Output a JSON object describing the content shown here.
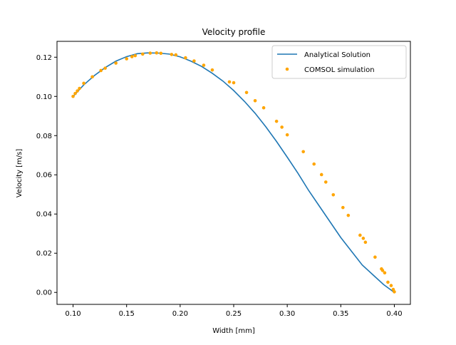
{
  "chart_data": {
    "type": "line",
    "title": "Velocity profile",
    "xlabel": "Width [mm]",
    "ylabel": "Velocity [m/s]",
    "xlim": [
      0.085,
      0.415
    ],
    "ylim": [
      -0.0061,
      0.1281
    ],
    "xticks": [
      0.1,
      0.15,
      0.2,
      0.25,
      0.3,
      0.35,
      0.4
    ],
    "xtick_labels": [
      "0.10",
      "0.15",
      "0.20",
      "0.25",
      "0.30",
      "0.35",
      "0.40"
    ],
    "yticks": [
      0.0,
      0.02,
      0.04,
      0.06,
      0.08,
      0.1,
      0.12
    ],
    "ytick_labels": [
      "0.00",
      "0.02",
      "0.04",
      "0.06",
      "0.08",
      "0.10",
      "0.12"
    ],
    "grid": false,
    "legend_position": "top-right",
    "series": [
      {
        "name": "Analytical Solution",
        "kind": "line",
        "color": "#1f77b4",
        "x": [
          0.1,
          0.11,
          0.12,
          0.13,
          0.14,
          0.15,
          0.16,
          0.17,
          0.18,
          0.19,
          0.2,
          0.21,
          0.22,
          0.23,
          0.24,
          0.25,
          0.26,
          0.27,
          0.28,
          0.29,
          0.3,
          0.31,
          0.32,
          0.33,
          0.34,
          0.35,
          0.36,
          0.37,
          0.38,
          0.39,
          0.4
        ],
        "y": [
          0.1,
          0.1059,
          0.1107,
          0.1147,
          0.118,
          0.1203,
          0.1218,
          0.1222,
          0.1221,
          0.1216,
          0.1202,
          0.118,
          0.1153,
          0.1118,
          0.1078,
          0.103,
          0.0975,
          0.0914,
          0.0845,
          0.077,
          0.069,
          0.0608,
          0.052,
          0.044,
          0.036,
          0.028,
          0.021,
          0.014,
          0.009,
          0.004,
          0.0
        ]
      },
      {
        "name": "COMSOL simulation",
        "kind": "scatter",
        "color": "#ffa500",
        "x": [
          0.1,
          0.102,
          0.104,
          0.106,
          0.11,
          0.118,
          0.126,
          0.13,
          0.14,
          0.15,
          0.155,
          0.158,
          0.165,
          0.172,
          0.178,
          0.182,
          0.192,
          0.196,
          0.205,
          0.213,
          0.222,
          0.23,
          0.246,
          0.25,
          0.262,
          0.27,
          0.278,
          0.29,
          0.295,
          0.3,
          0.315,
          0.325,
          0.332,
          0.336,
          0.343,
          0.352,
          0.357,
          0.368,
          0.371,
          0.373,
          0.382,
          0.388,
          0.389,
          0.391,
          0.394,
          0.397,
          0.399,
          0.4
        ],
        "y": [
          0.1,
          0.1015,
          0.1028,
          0.1041,
          0.1067,
          0.11,
          0.1132,
          0.1144,
          0.117,
          0.1192,
          0.1203,
          0.1208,
          0.1216,
          0.1221,
          0.1222,
          0.122,
          0.1214,
          0.1212,
          0.1197,
          0.1181,
          0.1159,
          0.1135,
          0.1074,
          0.107,
          0.102,
          0.0978,
          0.0942,
          0.0873,
          0.0843,
          0.0804,
          0.0718,
          0.0655,
          0.0601,
          0.0563,
          0.0498,
          0.0433,
          0.0393,
          0.0292,
          0.0276,
          0.0256,
          0.018,
          0.012,
          0.0112,
          0.01,
          0.0052,
          0.0035,
          0.0015,
          0.0003
        ]
      }
    ]
  }
}
